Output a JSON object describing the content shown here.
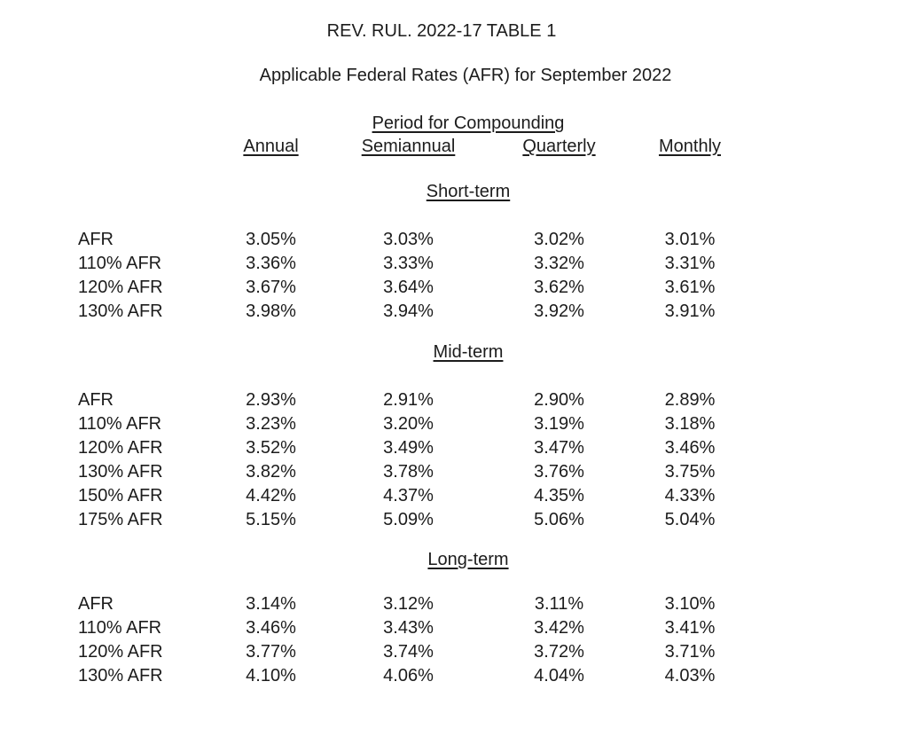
{
  "page": {
    "title": "REV. RUL. 2022-17 TABLE 1",
    "subtitle": "Applicable Federal Rates (AFR) for September 2022"
  },
  "table": {
    "compounding_header": "Period for Compounding",
    "columns": [
      "Annual",
      "Semiannual",
      "Quarterly",
      "Monthly"
    ],
    "sections": [
      {
        "heading": "Short-term",
        "rows": [
          {
            "label": "AFR",
            "values": [
              "3.05%",
              "3.03%",
              "3.02%",
              "3.01%"
            ]
          },
          {
            "label": "110% AFR",
            "values": [
              "3.36%",
              "3.33%",
              "3.32%",
              "3.31%"
            ]
          },
          {
            "label": "120% AFR",
            "values": [
              "3.67%",
              "3.64%",
              "3.62%",
              "3.61%"
            ]
          },
          {
            "label": "130% AFR",
            "values": [
              "3.98%",
              "3.94%",
              "3.92%",
              "3.91%"
            ]
          }
        ]
      },
      {
        "heading": "Mid-term",
        "rows": [
          {
            "label": "AFR",
            "values": [
              "2.93%",
              "2.91%",
              "2.90%",
              "2.89%"
            ]
          },
          {
            "label": "110% AFR",
            "values": [
              "3.23%",
              "3.20%",
              "3.19%",
              "3.18%"
            ]
          },
          {
            "label": "120% AFR",
            "values": [
              "3.52%",
              "3.49%",
              "3.47%",
              "3.46%"
            ]
          },
          {
            "label": "130% AFR",
            "values": [
              "3.82%",
              "3.78%",
              "3.76%",
              "3.75%"
            ]
          },
          {
            "label": "150% AFR",
            "values": [
              "4.42%",
              "4.37%",
              "4.35%",
              "4.33%"
            ]
          },
          {
            "label": "175% AFR",
            "values": [
              "5.15%",
              "5.09%",
              "5.06%",
              "5.04%"
            ]
          }
        ]
      },
      {
        "heading": "Long-term",
        "rows": [
          {
            "label": "AFR",
            "values": [
              "3.14%",
              "3.12%",
              "3.11%",
              "3.10%"
            ]
          },
          {
            "label": "110% AFR",
            "values": [
              "3.46%",
              "3.43%",
              "3.42%",
              "3.41%"
            ]
          },
          {
            "label": "120% AFR",
            "values": [
              "3.77%",
              "3.74%",
              "3.72%",
              "3.71%"
            ]
          },
          {
            "label": "130% AFR",
            "values": [
              "4.10%",
              "4.06%",
              "4.04%",
              "4.03%"
            ]
          }
        ]
      }
    ]
  },
  "colors": {
    "text": "#1c1c1c",
    "background": "#ffffff"
  }
}
